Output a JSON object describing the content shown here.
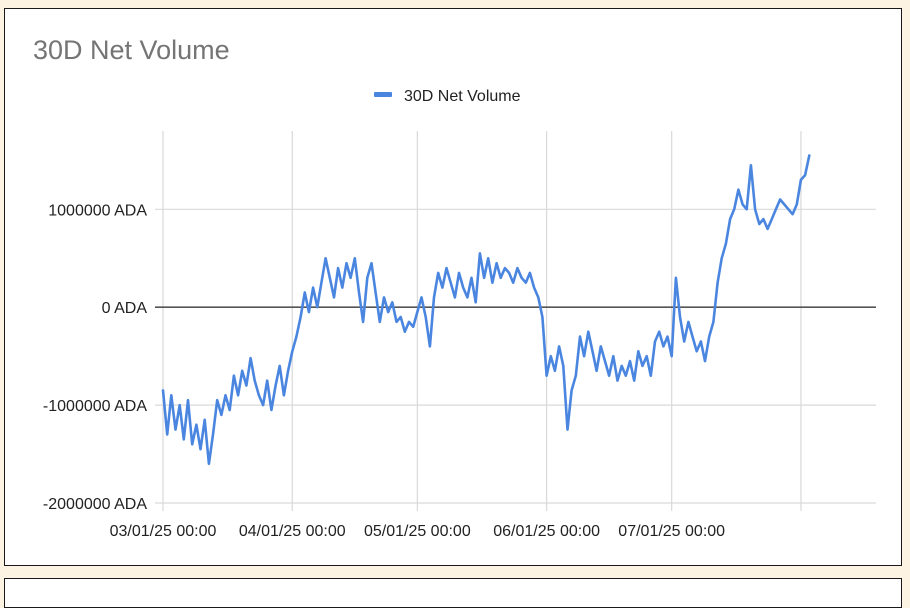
{
  "chart_data": {
    "type": "line",
    "title": "30D Net Volume",
    "xlabel": "",
    "ylabel": "",
    "legend": {
      "position": "top",
      "entries": [
        "30D Net Volume"
      ]
    },
    "grid": true,
    "ylim": [
      -2000000,
      1800000
    ],
    "yticks": [
      {
        "value": 1000000,
        "label": "1000000 ADA"
      },
      {
        "value": 0,
        "label": "0 ADA"
      },
      {
        "value": -1000000,
        "label": "-1000000 ADA"
      },
      {
        "value": -2000000,
        "label": "-2000000 ADA"
      }
    ],
    "xlim": [
      "2025-03-01",
      "2025-08-19"
    ],
    "xticks": [
      {
        "value": "2025-03-01",
        "label": "03/01/25 00:00"
      },
      {
        "value": "2025-04-01",
        "label": "04/01/25 00:00"
      },
      {
        "value": "2025-05-01",
        "label": "05/01/25 00:00"
      },
      {
        "value": "2025-06-01",
        "label": "06/01/25 00:00"
      },
      {
        "value": "2025-07-01",
        "label": "07/01/25 00:00"
      },
      {
        "value": "2025-08-01",
        "label": ""
      }
    ],
    "colors": {
      "series": "#4a86e0",
      "zero_line": "#555555",
      "grid": "#d9d9d9"
    },
    "series": [
      {
        "name": "30D Net Volume",
        "points": [
          [
            "2025-03-01",
            -850000
          ],
          [
            "2025-03-02",
            -1300000
          ],
          [
            "2025-03-03",
            -900000
          ],
          [
            "2025-03-04",
            -1250000
          ],
          [
            "2025-03-05",
            -1000000
          ],
          [
            "2025-03-06",
            -1350000
          ],
          [
            "2025-03-07",
            -950000
          ],
          [
            "2025-03-08",
            -1400000
          ],
          [
            "2025-03-09",
            -1200000
          ],
          [
            "2025-03-10",
            -1450000
          ],
          [
            "2025-03-11",
            -1150000
          ],
          [
            "2025-03-12",
            -1600000
          ],
          [
            "2025-03-13",
            -1300000
          ],
          [
            "2025-03-14",
            -950000
          ],
          [
            "2025-03-15",
            -1100000
          ],
          [
            "2025-03-16",
            -900000
          ],
          [
            "2025-03-17",
            -1050000
          ],
          [
            "2025-03-18",
            -700000
          ],
          [
            "2025-03-19",
            -900000
          ],
          [
            "2025-03-20",
            -650000
          ],
          [
            "2025-03-21",
            -800000
          ],
          [
            "2025-03-22",
            -520000
          ],
          [
            "2025-03-23",
            -750000
          ],
          [
            "2025-03-24",
            -900000
          ],
          [
            "2025-03-25",
            -1000000
          ],
          [
            "2025-03-26",
            -750000
          ],
          [
            "2025-03-27",
            -1050000
          ],
          [
            "2025-03-28",
            -800000
          ],
          [
            "2025-03-29",
            -600000
          ],
          [
            "2025-03-30",
            -900000
          ],
          [
            "2025-03-31",
            -650000
          ],
          [
            "2025-04-01",
            -450000
          ],
          [
            "2025-04-02",
            -300000
          ],
          [
            "2025-04-03",
            -100000
          ],
          [
            "2025-04-04",
            150000
          ],
          [
            "2025-04-05",
            -50000
          ],
          [
            "2025-04-06",
            200000
          ],
          [
            "2025-04-07",
            0
          ],
          [
            "2025-04-08",
            250000
          ],
          [
            "2025-04-09",
            500000
          ],
          [
            "2025-04-10",
            300000
          ],
          [
            "2025-04-11",
            100000
          ],
          [
            "2025-04-12",
            400000
          ],
          [
            "2025-04-13",
            200000
          ],
          [
            "2025-04-14",
            450000
          ],
          [
            "2025-04-15",
            300000
          ],
          [
            "2025-04-16",
            500000
          ],
          [
            "2025-04-17",
            150000
          ],
          [
            "2025-04-18",
            -150000
          ],
          [
            "2025-04-19",
            300000
          ],
          [
            "2025-04-20",
            450000
          ],
          [
            "2025-04-21",
            150000
          ],
          [
            "2025-04-22",
            -150000
          ],
          [
            "2025-04-23",
            100000
          ],
          [
            "2025-04-24",
            -50000
          ],
          [
            "2025-04-25",
            50000
          ],
          [
            "2025-04-26",
            -150000
          ],
          [
            "2025-04-27",
            -100000
          ],
          [
            "2025-04-28",
            -250000
          ],
          [
            "2025-04-29",
            -150000
          ],
          [
            "2025-04-30",
            -200000
          ],
          [
            "2025-05-01",
            -50000
          ],
          [
            "2025-05-02",
            100000
          ],
          [
            "2025-05-03",
            -100000
          ],
          [
            "2025-05-04",
            -400000
          ],
          [
            "2025-05-05",
            100000
          ],
          [
            "2025-05-06",
            350000
          ],
          [
            "2025-05-07",
            200000
          ],
          [
            "2025-05-08",
            400000
          ],
          [
            "2025-05-09",
            250000
          ],
          [
            "2025-05-10",
            100000
          ],
          [
            "2025-05-11",
            350000
          ],
          [
            "2025-05-12",
            200000
          ],
          [
            "2025-05-13",
            100000
          ],
          [
            "2025-05-14",
            300000
          ],
          [
            "2025-05-15",
            50000
          ],
          [
            "2025-05-16",
            550000
          ],
          [
            "2025-05-17",
            300000
          ],
          [
            "2025-05-18",
            500000
          ],
          [
            "2025-05-19",
            250000
          ],
          [
            "2025-05-20",
            450000
          ],
          [
            "2025-05-21",
            300000
          ],
          [
            "2025-05-22",
            400000
          ],
          [
            "2025-05-23",
            350000
          ],
          [
            "2025-05-24",
            250000
          ],
          [
            "2025-05-25",
            400000
          ],
          [
            "2025-05-26",
            300000
          ],
          [
            "2025-05-27",
            250000
          ],
          [
            "2025-05-28",
            350000
          ],
          [
            "2025-05-29",
            200000
          ],
          [
            "2025-05-30",
            100000
          ],
          [
            "2025-05-31",
            -100000
          ],
          [
            "2025-06-01",
            -700000
          ],
          [
            "2025-06-02",
            -500000
          ],
          [
            "2025-06-03",
            -650000
          ],
          [
            "2025-06-04",
            -400000
          ],
          [
            "2025-06-05",
            -600000
          ],
          [
            "2025-06-06",
            -1250000
          ],
          [
            "2025-06-07",
            -850000
          ],
          [
            "2025-06-08",
            -700000
          ],
          [
            "2025-06-09",
            -300000
          ],
          [
            "2025-06-10",
            -500000
          ],
          [
            "2025-06-11",
            -250000
          ],
          [
            "2025-06-12",
            -450000
          ],
          [
            "2025-06-13",
            -650000
          ],
          [
            "2025-06-14",
            -400000
          ],
          [
            "2025-06-15",
            -550000
          ],
          [
            "2025-06-16",
            -700000
          ],
          [
            "2025-06-17",
            -500000
          ],
          [
            "2025-06-18",
            -750000
          ],
          [
            "2025-06-19",
            -600000
          ],
          [
            "2025-06-20",
            -700000
          ],
          [
            "2025-06-21",
            -550000
          ],
          [
            "2025-06-22",
            -750000
          ],
          [
            "2025-06-23",
            -450000
          ],
          [
            "2025-06-24",
            -600000
          ],
          [
            "2025-06-25",
            -500000
          ],
          [
            "2025-06-26",
            -700000
          ],
          [
            "2025-06-27",
            -350000
          ],
          [
            "2025-06-28",
            -250000
          ],
          [
            "2025-06-29",
            -400000
          ],
          [
            "2025-06-30",
            -300000
          ],
          [
            "2025-07-01",
            -500000
          ],
          [
            "2025-07-02",
            300000
          ],
          [
            "2025-07-03",
            -100000
          ],
          [
            "2025-07-04",
            -350000
          ],
          [
            "2025-07-05",
            -150000
          ],
          [
            "2025-07-06",
            -300000
          ],
          [
            "2025-07-07",
            -450000
          ],
          [
            "2025-07-08",
            -350000
          ],
          [
            "2025-07-09",
            -550000
          ],
          [
            "2025-07-10",
            -300000
          ],
          [
            "2025-07-11",
            -150000
          ],
          [
            "2025-07-12",
            250000
          ],
          [
            "2025-07-13",
            500000
          ],
          [
            "2025-07-14",
            650000
          ],
          [
            "2025-07-15",
            900000
          ],
          [
            "2025-07-16",
            1000000
          ],
          [
            "2025-07-17",
            1200000
          ],
          [
            "2025-07-18",
            1050000
          ],
          [
            "2025-07-19",
            1000000
          ],
          [
            "2025-07-20",
            1450000
          ],
          [
            "2025-07-21",
            1000000
          ],
          [
            "2025-07-22",
            850000
          ],
          [
            "2025-07-23",
            900000
          ],
          [
            "2025-07-24",
            800000
          ],
          [
            "2025-07-25",
            900000
          ],
          [
            "2025-07-26",
            1000000
          ],
          [
            "2025-07-27",
            1100000
          ],
          [
            "2025-07-28",
            1050000
          ],
          [
            "2025-07-29",
            1000000
          ],
          [
            "2025-07-30",
            950000
          ],
          [
            "2025-07-31",
            1050000
          ],
          [
            "2025-08-01",
            1300000
          ],
          [
            "2025-08-02",
            1350000
          ],
          [
            "2025-08-03",
            1550000
          ]
        ]
      }
    ]
  }
}
